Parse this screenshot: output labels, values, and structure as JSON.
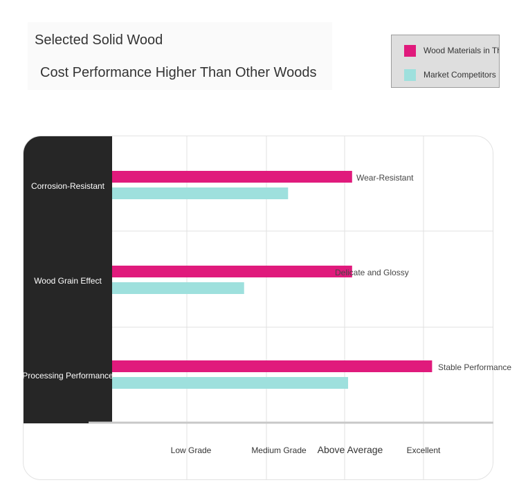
{
  "title": {
    "line1": "Selected Solid Wood",
    "line2": "Cost Performance Higher Than Other Woods"
  },
  "legend": {
    "items": [
      {
        "label": "Wood Materials in This Se",
        "color": "#e01a7c"
      },
      {
        "label": "Market Competitors",
        "color": "#9ee0dd"
      }
    ]
  },
  "colors": {
    "panel": "#262626",
    "grid": "#e0e0e0",
    "axis": "#c8c8c8"
  },
  "chart_data": {
    "type": "bar",
    "orientation": "horizontal",
    "categories": [
      "Corrosion-Resistant",
      "Wood Grain Effect",
      "Processing Performance"
    ],
    "series": [
      {
        "name": "Wood Materials in This Se",
        "values": [
          3.0,
          3.0,
          4.0
        ],
        "color": "#e01a7c"
      },
      {
        "name": "Market Competitors",
        "values": [
          2.2,
          1.65,
          2.95
        ],
        "color": "#9ee0dd"
      }
    ],
    "bar_labels": [
      "Wear-Resistant",
      "Delicate and Glossy",
      "Stable Performance"
    ],
    "x_tick_labels": [
      "Low Grade",
      "Medium Grade",
      "Above Average",
      "Excellent"
    ],
    "xlim": [
      0,
      4.8
    ],
    "grid": true,
    "legend_position": "top-right"
  }
}
